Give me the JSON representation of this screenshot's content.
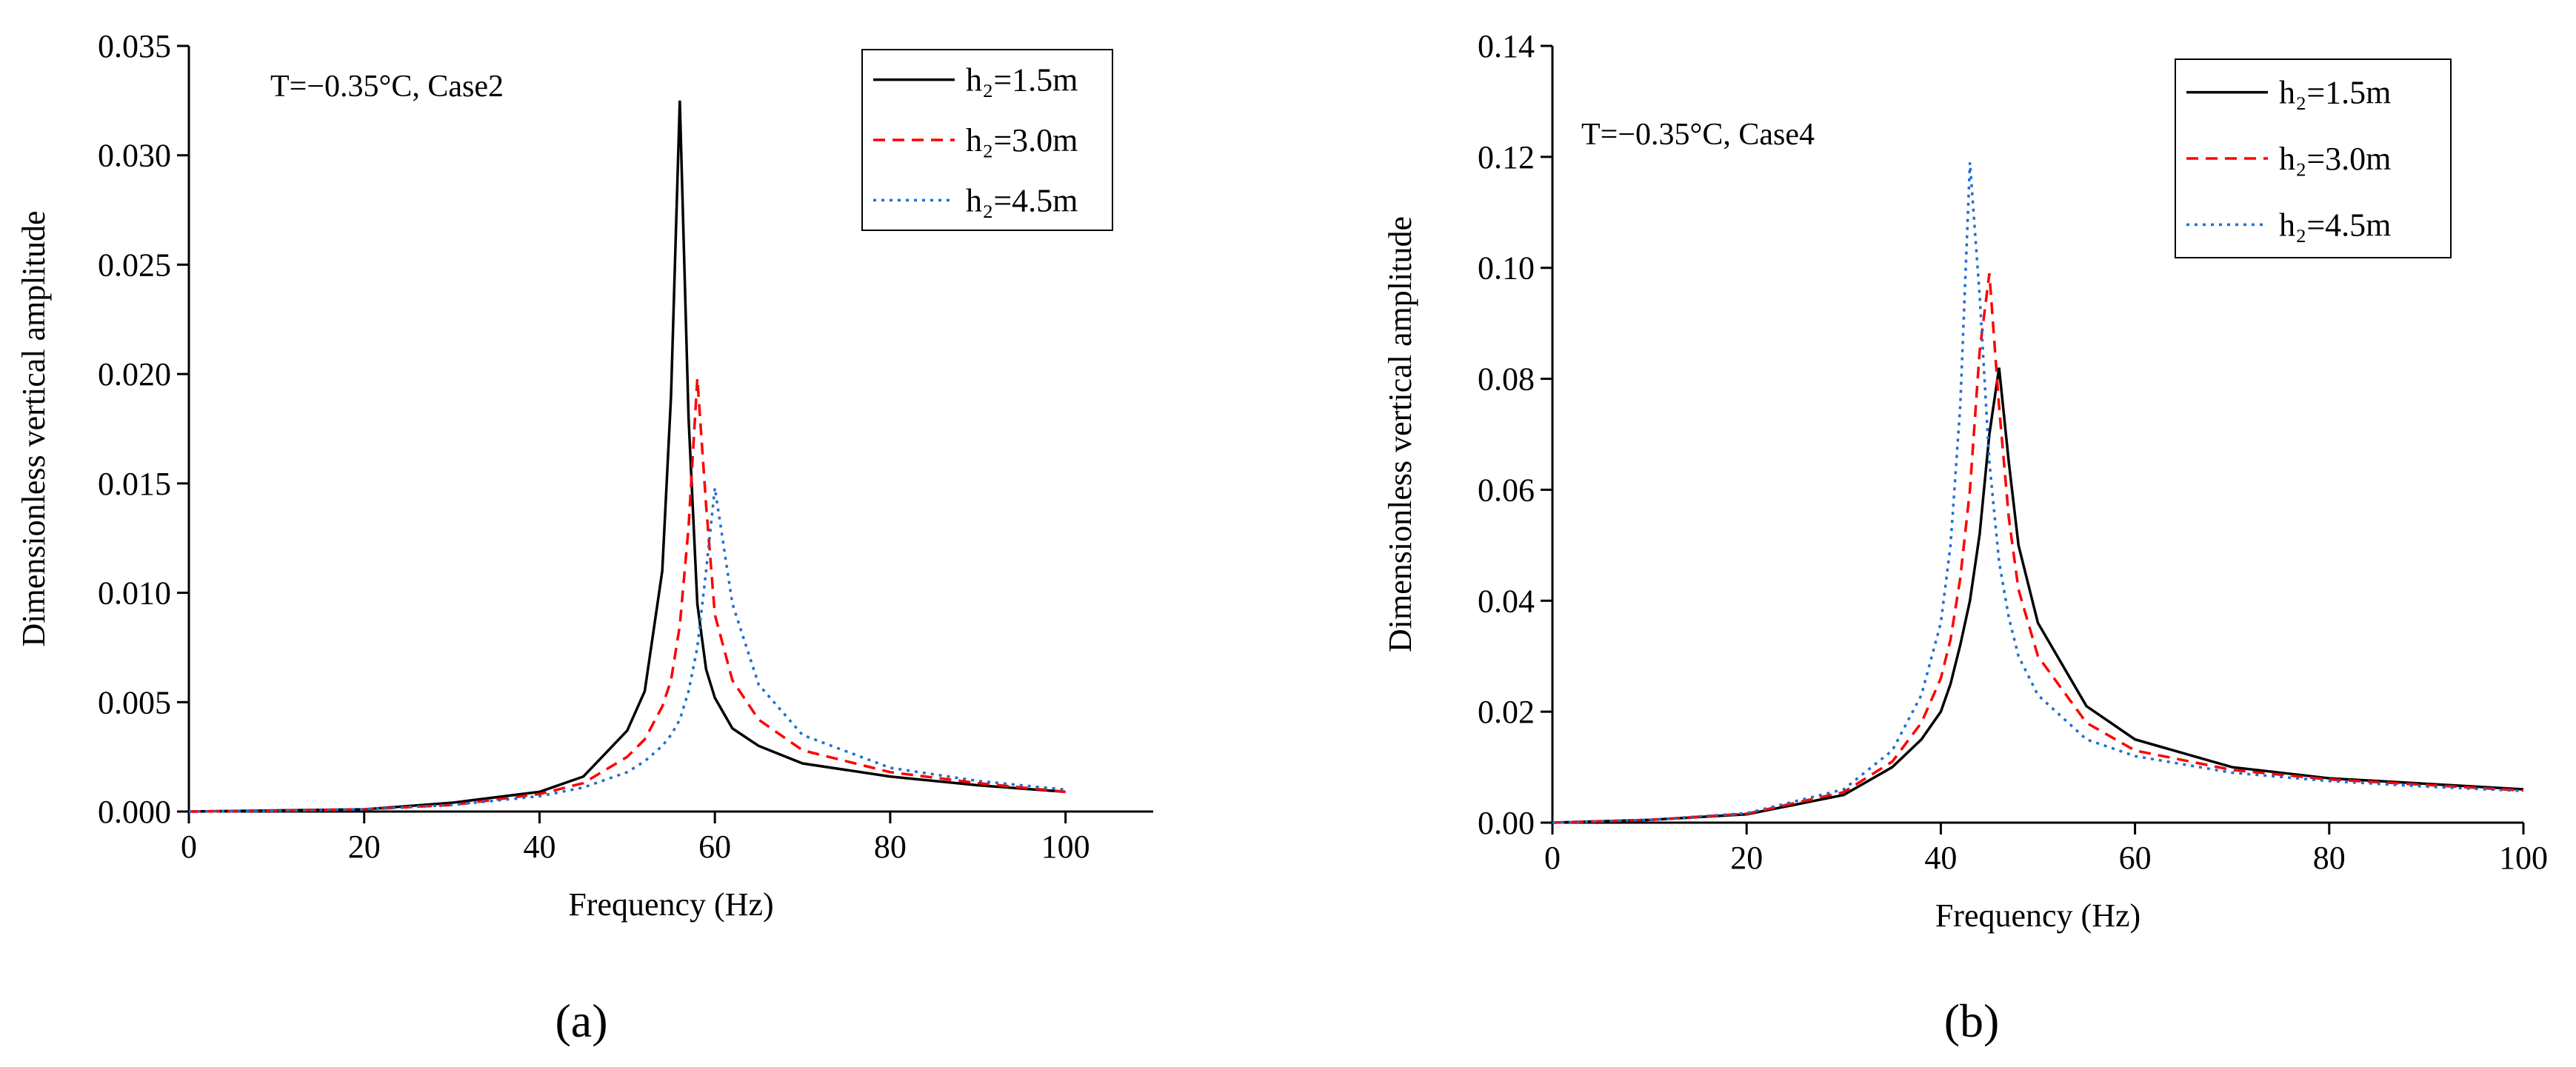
{
  "chart_data": [
    {
      "type": "line",
      "panel_label": "(a)",
      "annotation": "T=−0.35°C, Case2",
      "x_label": "Frequency (Hz)",
      "y_label": "Dimensionless vertical amplitude",
      "x": [
        0,
        10,
        20,
        30,
        40,
        45,
        50,
        52,
        54,
        55,
        56,
        57,
        58,
        59,
        60,
        62,
        65,
        70,
        80,
        90,
        100
      ],
      "series": [
        {
          "name": "h₂=1.5m",
          "color": "#000000",
          "dash": "solid",
          "values": [
            0,
            5e-05,
            0.0001,
            0.0004,
            0.0009,
            0.0016,
            0.0037,
            0.0055,
            0.011,
            0.019,
            0.0325,
            0.018,
            0.0095,
            0.0065,
            0.0052,
            0.0038,
            0.003,
            0.0022,
            0.0016,
            0.0012,
            0.0009
          ]
        },
        {
          "name": "h₂=3.0m",
          "color": "#ff0000",
          "dash": "dashed",
          "values": [
            0,
            4e-05,
            0.0001,
            0.0003,
            0.0008,
            0.0013,
            0.0025,
            0.0033,
            0.0048,
            0.006,
            0.0085,
            0.013,
            0.0198,
            0.014,
            0.009,
            0.006,
            0.0042,
            0.0028,
            0.0018,
            0.0013,
            0.0009
          ]
        },
        {
          "name": "h₂=4.5m",
          "color": "#1f6fd0",
          "dash": "dotted",
          "values": [
            0,
            3e-05,
            0.0001,
            0.0003,
            0.0007,
            0.0011,
            0.0018,
            0.0023,
            0.003,
            0.0035,
            0.0042,
            0.0055,
            0.0075,
            0.011,
            0.0148,
            0.0095,
            0.0058,
            0.0035,
            0.002,
            0.0014,
            0.001
          ]
        }
      ],
      "xlim": [
        0,
        110
      ],
      "xticks": [
        0,
        20,
        40,
        60,
        80,
        100
      ],
      "ylim": [
        0,
        0.035
      ],
      "yticks": [
        {
          "value": 0,
          "label": "0.000"
        },
        0.005,
        {
          "value": 0.01,
          "label": "0.010"
        },
        0.015,
        {
          "value": 0.02,
          "label": "0.020"
        },
        0.025,
        {
          "value": 0.03,
          "label": "0.030"
        },
        0.035
      ],
      "legend": "upper right"
    },
    {
      "type": "line",
      "panel_label": "(b)",
      "annotation": "T=−0.35°C, Case4",
      "x_label": "Frequency (Hz)",
      "y_label": "Dimensionless vertical amplitude",
      "x": [
        0,
        10,
        20,
        30,
        35,
        38,
        40,
        41,
        42,
        43,
        44,
        45,
        46,
        47,
        48,
        50,
        55,
        60,
        70,
        80,
        90,
        100
      ],
      "series": [
        {
          "name": "h₂=1.5m",
          "color": "#000000",
          "dash": "solid",
          "values": [
            0,
            0.0005,
            0.0015,
            0.005,
            0.01,
            0.015,
            0.02,
            0.025,
            0.032,
            0.04,
            0.052,
            0.07,
            0.082,
            0.065,
            0.05,
            0.036,
            0.021,
            0.015,
            0.01,
            0.008,
            0.007,
            0.006
          ]
        },
        {
          "name": "h₂=3.0m",
          "color": "#ff0000",
          "dash": "dashed",
          "values": [
            0,
            0.0005,
            0.0016,
            0.0055,
            0.011,
            0.018,
            0.026,
            0.033,
            0.044,
            0.06,
            0.085,
            0.099,
            0.075,
            0.055,
            0.042,
            0.03,
            0.018,
            0.013,
            0.0095,
            0.0078,
            0.0068,
            0.0058
          ]
        },
        {
          "name": "h₂=4.5m",
          "color": "#1f6fd0",
          "dash": "dotted",
          "values": [
            0,
            0.0005,
            0.0017,
            0.006,
            0.013,
            0.023,
            0.036,
            0.05,
            0.075,
            0.119,
            0.095,
            0.065,
            0.047,
            0.037,
            0.03,
            0.023,
            0.015,
            0.012,
            0.009,
            0.0075,
            0.0065,
            0.0057
          ]
        }
      ],
      "xlim": [
        0,
        100
      ],
      "xticks": [
        0,
        20,
        40,
        60,
        80,
        100
      ],
      "ylim": [
        0,
        0.14
      ],
      "yticks": [
        {
          "value": 0,
          "label": "0.00"
        },
        0.02,
        0.04,
        0.06,
        0.08,
        {
          "value": 0.1,
          "label": "0.10"
        },
        0.12,
        0.14
      ],
      "legend": "upper right"
    }
  ]
}
